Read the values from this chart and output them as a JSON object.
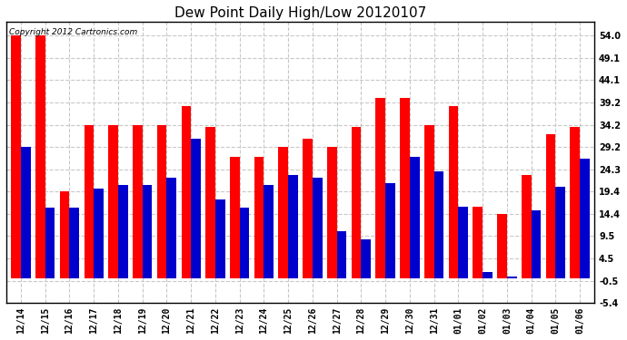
{
  "title": "Dew Point Daily High/Low 20120107",
  "copyright": "Copyright 2012 Cartronics.com",
  "dates": [
    "12/14",
    "12/15",
    "12/16",
    "12/17",
    "12/18",
    "12/19",
    "12/20",
    "12/21",
    "12/22",
    "12/23",
    "12/24",
    "12/25",
    "12/26",
    "12/27",
    "12/28",
    "12/29",
    "12/30",
    "12/31",
    "01/01",
    "01/02",
    "01/03",
    "01/04",
    "01/05",
    "01/06"
  ],
  "highs": [
    54.0,
    54.0,
    19.4,
    34.2,
    34.2,
    34.2,
    34.2,
    38.3,
    33.8,
    27.0,
    27.0,
    29.2,
    31.1,
    29.2,
    33.8,
    40.1,
    40.1,
    34.2,
    38.3,
    16.0,
    14.4,
    23.0,
    32.0,
    33.8
  ],
  "lows": [
    29.2,
    15.8,
    15.8,
    20.0,
    20.7,
    20.7,
    22.5,
    31.1,
    17.6,
    15.8,
    20.7,
    23.0,
    22.5,
    10.4,
    8.6,
    21.2,
    27.0,
    23.9,
    16.0,
    1.4,
    0.5,
    15.1,
    20.3,
    26.6
  ],
  "y_ticks": [
    -5.4,
    -0.5,
    4.5,
    9.5,
    14.4,
    19.4,
    24.3,
    29.2,
    34.2,
    39.2,
    44.1,
    49.1,
    54.0
  ],
  "ymin": -5.4,
  "ymax": 57.0,
  "high_color": "#ff0000",
  "low_color": "#0000cc",
  "bg_color": "#ffffff",
  "plot_bg_color": "#ffffff",
  "grid_color": "#c8c8c8",
  "title_fontsize": 11,
  "tick_fontsize": 7,
  "copyright_fontsize": 6.5,
  "fig_width": 6.9,
  "fig_height": 3.75,
  "dpi": 100
}
